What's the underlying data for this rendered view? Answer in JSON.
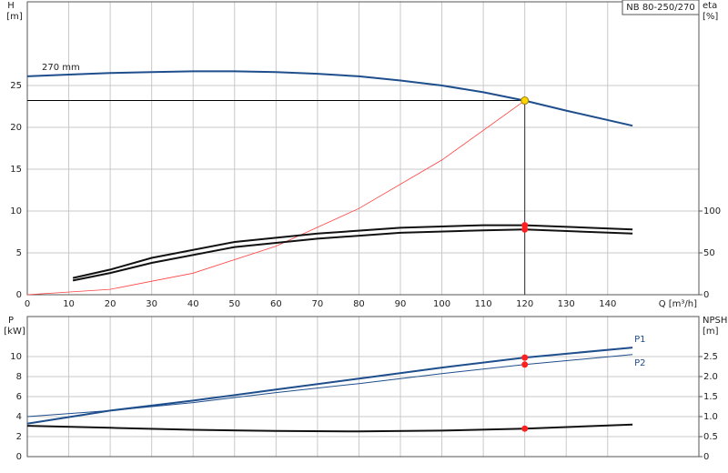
{
  "chart_data": [
    {
      "type": "line",
      "title": "NB 80-250/270",
      "y_label": "H",
      "y_unit": "[m]",
      "y2_label": "eta",
      "y2_unit": "[%]",
      "x_label": "Q [m³/h]",
      "xlim": [
        0,
        162
      ],
      "xticks": [
        0,
        10,
        20,
        30,
        40,
        50,
        60,
        70,
        80,
        90,
        100,
        110,
        120,
        130,
        140
      ],
      "xtick_labels": true,
      "ylim": [
        0,
        35
      ],
      "yticks": [
        0,
        5,
        10,
        15,
        20,
        25
      ],
      "y2lim": [
        0,
        350
      ],
      "y2ticks": [
        0,
        50,
        100
      ],
      "grid": true,
      "series": [
        {
          "name": "270 mm",
          "color": "#1f4e8c",
          "width": 2,
          "x": [
            0,
            10,
            20,
            30,
            40,
            50,
            60,
            70,
            80,
            90,
            100,
            110,
            120,
            130,
            146
          ],
          "values": [
            26.1,
            26.3,
            26.5,
            26.6,
            26.7,
            26.7,
            26.6,
            26.4,
            26.1,
            25.6,
            25,
            24.2,
            23.2,
            22,
            20.2
          ]
        },
        {
          "color": "#ff4040",
          "width": 0.8,
          "x": [
            0,
            20,
            40,
            60,
            80,
            100,
            120
          ],
          "values": [
            0,
            0.64,
            2.58,
            5.8,
            10.3,
            16.1,
            23.2
          ]
        },
        {
          "color": "#111111",
          "width": 2,
          "axis": "y2",
          "x": [
            11,
            20,
            30,
            50,
            70,
            90,
            110,
            120,
            146
          ],
          "values": [
            20,
            30,
            44,
            63,
            73,
            80,
            83,
            83,
            78
          ]
        },
        {
          "color": "#111111",
          "width": 2,
          "axis": "y2",
          "x": [
            11,
            20,
            30,
            50,
            70,
            90,
            110,
            120,
            146
          ],
          "values": [
            17,
            26,
            38,
            57,
            67,
            74,
            77,
            78,
            73
          ]
        }
      ],
      "operating_point": {
        "x": 120,
        "y": 23.2,
        "color": "#ffd400"
      },
      "points": [
        {
          "x": 120,
          "y": 83,
          "axis": "y2",
          "color": "#ff2020"
        },
        {
          "x": 120,
          "y": 78,
          "axis": "y2",
          "color": "#ff2020"
        }
      ]
    },
    {
      "type": "line",
      "y_label": "P",
      "y_unit": "[kW]",
      "y2_label": "NPSH",
      "y2_unit": "[m]",
      "xlim": [
        0,
        162
      ],
      "xticks": [
        0,
        10,
        20,
        30,
        40,
        50,
        60,
        70,
        80,
        90,
        100,
        110,
        120,
        130,
        140
      ],
      "xtick_labels": false,
      "ylim": [
        0,
        14
      ],
      "yticks": [
        0,
        2,
        4,
        6,
        8,
        10
      ],
      "y2lim": [
        0,
        3.5
      ],
      "y2ticks": [
        0,
        0.5,
        {
          "value": 1,
          "label": "1.0"
        },
        1.5,
        {
          "value": 2,
          "label": "2.0"
        },
        2.5
      ],
      "grid": true,
      "series": [
        {
          "name": "P1",
          "color": "#1f4e8c",
          "width": 2,
          "x": [
            0,
            20,
            40,
            60,
            80,
            100,
            120,
            146
          ],
          "values": [
            3.3,
            4.6,
            5.6,
            6.7,
            7.8,
            8.9,
            9.9,
            10.9
          ]
        },
        {
          "name": "P2",
          "color": "#1f4e8c",
          "width": 1,
          "x": [
            0,
            20,
            40,
            60,
            80,
            100,
            120,
            146
          ],
          "values": [
            4.0,
            4.6,
            5.4,
            6.4,
            7.3,
            8.3,
            9.2,
            10.2
          ]
        },
        {
          "color": "#111111",
          "width": 2,
          "axis": "y2",
          "x": [
            0,
            20,
            40,
            60,
            80,
            100,
            120,
            146
          ],
          "values": [
            0.77,
            0.72,
            0.67,
            0.64,
            0.63,
            0.65,
            0.7,
            0.8
          ]
        }
      ],
      "points": [
        {
          "x": 120,
          "y": 9.9,
          "color": "#ff2020"
        },
        {
          "x": 120,
          "y": 9.2,
          "color": "#ff2020"
        },
        {
          "x": 120,
          "y": 0.7,
          "axis": "y2",
          "color": "#ff2020"
        }
      ]
    }
  ]
}
